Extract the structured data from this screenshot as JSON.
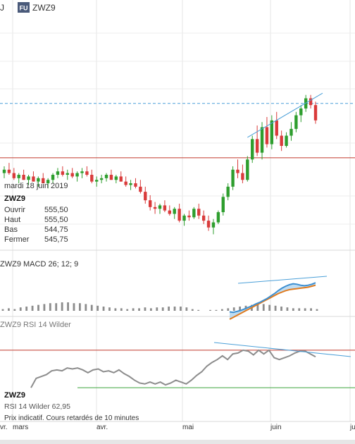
{
  "header": {
    "left_fragment": "J",
    "badge": "FU",
    "symbol": "ZWZ9"
  },
  "price_panel": {
    "tooltip": {
      "date": "mardi 18 juin 2019",
      "symbol": "ZWZ9",
      "rows": [
        {
          "label": "Ouvrir",
          "value": "555,50"
        },
        {
          "label": "Haut",
          "value": "555,50"
        },
        {
          "label": "Bas",
          "value": "544,75"
        },
        {
          "label": "Fermer",
          "value": "545,75"
        }
      ]
    }
  },
  "macd_panel": {
    "title": "ZWZ9  MACD 26; 12; 9"
  },
  "rsi_panel": {
    "title": "ZWZ9  RSI 14 Wilder",
    "legend_symbol": "ZWZ9",
    "legend_value": "RSI 14 Wilder 62,95"
  },
  "footer_note": "Prix indicatif. Cours retardés de 10 minutes",
  "x_axis_labels": [
    "vr.",
    "mars",
    "avr.",
    "mai",
    "juin",
    "ju"
  ],
  "colors": {
    "up": "#2e9e2e",
    "down": "#d93b3b",
    "trendline": "#4a9fd8",
    "support_red": "#c0392b",
    "support_green": "#3aa33a",
    "macd_line": "#3d8fd1",
    "signal_line": "#e07b1f",
    "rsi_line": "#8c8c8c",
    "histogram": "#8c8c8c"
  },
  "chart_data": [
    {
      "type": "candlestick",
      "candles": [
        [
          490,
          494,
          487,
          492
        ],
        [
          492,
          496,
          489,
          490
        ],
        [
          490,
          493,
          486,
          487
        ],
        [
          487,
          490,
          484,
          489
        ],
        [
          489,
          492,
          486,
          486
        ],
        [
          486,
          489,
          483,
          488
        ],
        [
          488,
          491,
          485,
          485
        ],
        [
          485,
          488,
          482,
          487
        ],
        [
          487,
          490,
          484,
          484
        ],
        [
          484,
          487,
          481,
          486
        ],
        [
          486,
          490,
          484,
          489
        ],
        [
          489,
          493,
          487,
          491
        ],
        [
          491,
          494,
          488,
          489
        ],
        [
          489,
          492,
          486,
          490
        ],
        [
          490,
          493,
          487,
          488
        ],
        [
          488,
          491,
          485,
          490
        ],
        [
          490,
          493,
          487,
          491
        ],
        [
          491,
          494,
          488,
          489
        ],
        [
          489,
          492,
          484,
          485
        ],
        [
          485,
          488,
          482,
          486
        ],
        [
          486,
          489,
          484,
          487
        ],
        [
          487,
          490,
          485,
          489
        ],
        [
          489,
          492,
          486,
          486
        ],
        [
          486,
          489,
          484,
          488
        ],
        [
          488,
          491,
          485,
          485
        ],
        [
          485,
          488,
          482,
          483
        ],
        [
          483,
          486,
          480,
          484
        ],
        [
          484,
          487,
          481,
          482
        ],
        [
          482,
          486,
          478,
          479
        ],
        [
          479,
          482,
          472,
          474
        ],
        [
          474,
          477,
          468,
          470
        ],
        [
          470,
          473,
          466,
          469
        ],
        [
          469,
          472,
          466,
          471
        ],
        [
          471,
          474,
          467,
          468
        ],
        [
          468,
          471,
          465,
          466
        ],
        [
          466,
          470,
          463,
          469
        ],
        [
          469,
          472,
          461,
          462
        ],
        [
          462,
          466,
          459,
          465
        ],
        [
          465,
          468,
          462,
          464
        ],
        [
          464,
          470,
          463,
          469
        ],
        [
          469,
          472,
          463,
          465
        ],
        [
          465,
          468,
          460,
          462
        ],
        [
          462,
          465,
          456,
          458
        ],
        [
          458,
          463,
          454,
          461
        ],
        [
          461,
          468,
          460,
          467
        ],
        [
          467,
          478,
          465,
          476
        ],
        [
          476,
          484,
          474,
          482
        ],
        [
          482,
          494,
          480,
          492
        ],
        [
          492,
          498,
          487,
          490
        ],
        [
          490,
          495,
          484,
          486
        ],
        [
          486,
          500,
          485,
          498
        ],
        [
          498,
          512,
          496,
          510
        ],
        [
          510,
          518,
          500,
          502
        ],
        [
          502,
          520,
          498,
          517
        ],
        [
          517,
          523,
          505,
          507
        ],
        [
          507,
          524,
          504,
          521
        ],
        [
          521,
          526,
          510,
          512
        ],
        [
          512,
          515,
          503,
          506
        ],
        [
          506,
          514,
          505,
          512
        ],
        [
          512,
          520,
          509,
          516
        ],
        [
          516,
          526,
          514,
          524
        ],
        [
          524,
          530,
          520,
          528
        ],
        [
          528,
          536,
          526,
          534
        ],
        [
          534,
          536,
          528,
          530
        ],
        [
          530,
          532,
          519,
          521
        ]
      ],
      "support_level": 499,
      "resistance_level": 531,
      "tooltip_values": {
        "open": 555.5,
        "high": 555.5,
        "low": 544.75,
        "close": 545.75
      }
    },
    {
      "type": "line+histogram",
      "title": "MACD 26; 12; 9",
      "macd": [
        -1.5,
        -1.6,
        -1.4,
        -1.2,
        -0.9,
        -0.6,
        -0.3,
        0.1,
        0.4,
        0.8,
        1.2,
        1.7,
        2.2,
        2.8,
        3.3,
        3.7,
        4.0,
        4.2,
        4.1,
        3.9,
        3.8,
        3.9,
        4.1,
        4.4
      ],
      "signal": [
        -3.0,
        -2.6,
        -2.2,
        -1.8,
        -1.4,
        -1.0,
        -0.6,
        -0.2,
        0.2,
        0.6,
        1.0,
        1.4,
        1.8,
        2.2,
        2.5,
        2.8,
        3.0,
        3.1,
        3.2,
        3.3,
        3.4,
        3.5,
        3.7,
        3.9
      ],
      "histogram": [
        0.2,
        0.3,
        0.2,
        0.4,
        0.5,
        0.6,
        0.7,
        0.8,
        0.9,
        0.9,
        1.0,
        1.0,
        0.9,
        0.9,
        0.8,
        0.7,
        0.6,
        0.5,
        0.4,
        0.3,
        0.3,
        0.2,
        0.3,
        0.3,
        0.4,
        0.3,
        0.4,
        0.4,
        0.5,
        0.5,
        0.5,
        0.4,
        0.2,
        0.1,
        0.0,
        0.1,
        0.1,
        0.2,
        0.3,
        0.4,
        0.5,
        0.6,
        0.7,
        0.8,
        0.8,
        0.7,
        0.6,
        0.5,
        0.4,
        0.3,
        0.3,
        0.3,
        0.3,
        0.2
      ]
    },
    {
      "type": "line",
      "title": "RSI 14 Wilder",
      "levels": {
        "overbought": 70,
        "oversold": 30
      },
      "values": [
        30,
        40,
        42,
        44,
        48,
        49,
        48,
        51,
        50,
        51,
        49,
        46,
        49,
        50,
        47,
        48,
        46,
        49,
        45,
        42,
        38,
        35,
        34,
        36,
        34,
        36,
        33,
        35,
        38,
        36,
        34,
        38,
        43,
        47,
        53,
        57,
        60,
        64,
        60,
        66,
        67,
        70,
        69,
        65,
        70,
        66,
        70,
        62,
        60,
        62,
        64,
        67,
        69,
        69,
        66,
        63
      ],
      "last_value": 62.95
    }
  ]
}
